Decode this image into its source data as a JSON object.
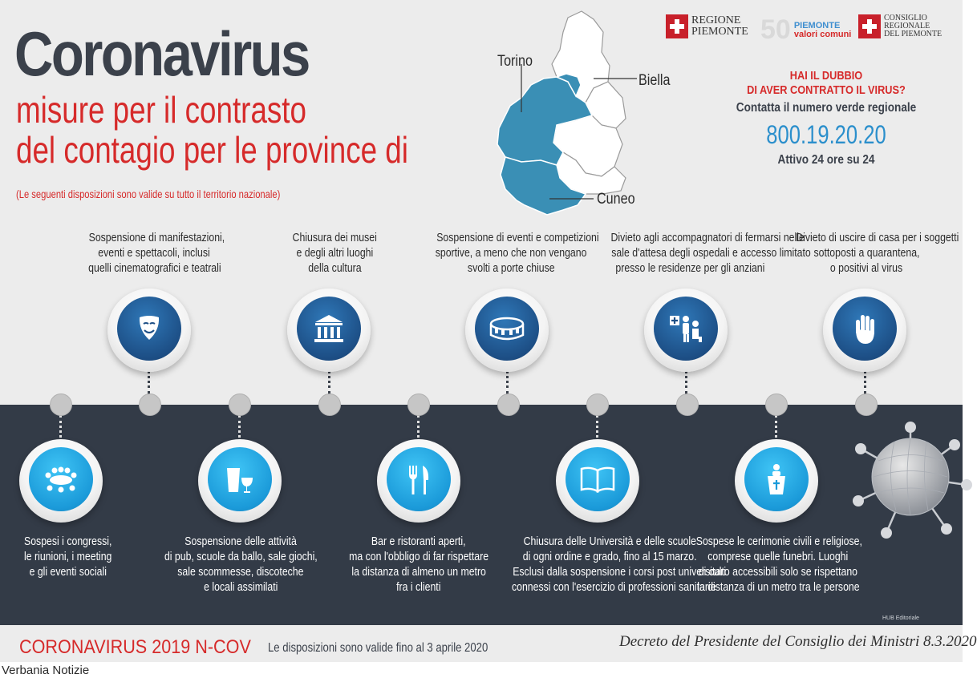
{
  "header": {
    "title": "Coronavirus",
    "subtitle_line1": "misure per il contrasto",
    "subtitle_line2": "del contagio per le province di",
    "note": "(Le seguenti disposizioni sono valide su tutto il territorio nazionale)"
  },
  "map": {
    "labels": [
      "Torino",
      "Biella",
      "Cuneo"
    ],
    "highlight_color": "#3a8fb5"
  },
  "logos": {
    "regione_line1": "REGIONE",
    "regione_line2": "PIEMONTE",
    "fifty": "50",
    "fifty_line1": "PIEMONTE",
    "fifty_line2": "valori comuni",
    "consiglio_line1": "CONSIGLIO",
    "consiglio_line2": "REGIONALE",
    "consiglio_line3": "DEL PIEMONTE"
  },
  "help": {
    "question_line1": "HAI IL DUBBIO",
    "question_line2": "DI AVER CONTRATTO IL VIRUS?",
    "call": "Contatta il numero verde regionale",
    "number": "800.19.20.20",
    "active": "Attivo 24 ore su 24"
  },
  "measures_top": [
    {
      "icon": "theater-masks-icon",
      "lines": [
        "Sospensione di manifestazioni,",
        "eventi e spettacoli, inclusi",
        "quelli cinematografici e teatrali"
      ]
    },
    {
      "icon": "museum-icon",
      "lines": [
        "Chiusura dei musei",
        "e degli altri luoghi",
        "della cultura"
      ]
    },
    {
      "icon": "stadium-icon",
      "lines": [
        "Sospensione di eventi e competizioni",
        "sportive, a meno che non vengano",
        "svolti a porte chiuse"
      ]
    },
    {
      "icon": "hospital-waiting-icon",
      "lines": [
        "Divieto agli accompagnatori di fermarsi nelle",
        "sale d'attesa degli ospedali e accesso limitato",
        "presso le residenze per gli anziani"
      ]
    },
    {
      "icon": "stop-hand-icon",
      "lines": [
        "Divieto di uscire di casa per i soggetti",
        "sottoposti a quarantena,",
        "o positivi al virus"
      ]
    }
  ],
  "measures_bottom": [
    {
      "icon": "meeting-icon",
      "lines": [
        "Sospesi i congressi,",
        "le riunioni, i meeting",
        "e gli eventi sociali"
      ]
    },
    {
      "icon": "drinks-icon",
      "lines": [
        "Sospensione delle attività",
        "di pub, scuole da ballo, sale giochi,",
        "sale scommesse, discoteche",
        "e locali assimilati"
      ]
    },
    {
      "icon": "fork-knife-icon",
      "lines": [
        "Bar e ristoranti aperti,",
        "ma con l'obbligo di far rispettare",
        "la distanza di almeno un metro",
        "fra i clienti"
      ]
    },
    {
      "icon": "open-book-icon",
      "lines": [
        "Chiusura delle Università  e delle scuole",
        "di ogni ordine  e grado, fino al 15 marzo.",
        "Esclusi dalla sospensione i corsi post universitari",
        "connessi con l'esercizio di professioni sanitarie"
      ]
    },
    {
      "icon": "pulpit-icon",
      "lines": [
        "Sospese le cerimonie civili e religiose,",
        "comprese quelle funebri.  Luoghi",
        "di culto accessibili solo se rispettano",
        "la distanza di un metro tra le persone"
      ]
    }
  ],
  "footer": {
    "title": "CORONAVIRUS 2019 N-COV",
    "validity": "Le disposizioni sono valide fino al 3 aprile 2020",
    "decree": "Decreto del Presidente del Consiglio dei Ministri 8.3.2020",
    "hub": "HUB Editoriale"
  },
  "credit": "Verbania Notizie",
  "colors": {
    "accent_red": "#d62a2a",
    "dark_band": "#333b47",
    "icon_dark_blue": "#1d4f86",
    "icon_light_blue": "#1b9ad9",
    "number_blue": "#2b8fcc"
  }
}
